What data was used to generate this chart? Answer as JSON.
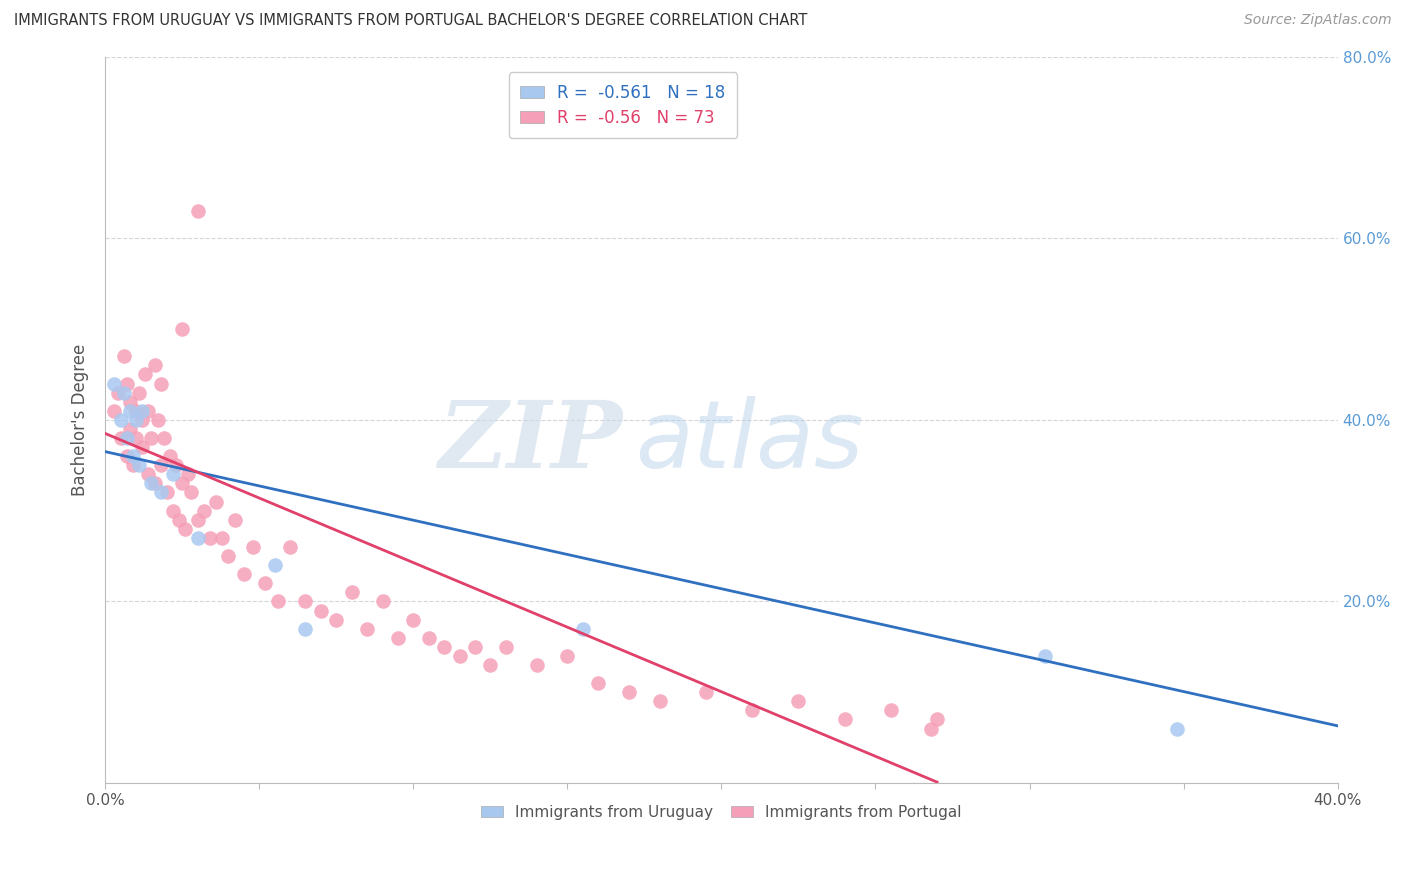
{
  "title": "IMMIGRANTS FROM URUGUAY VS IMMIGRANTS FROM PORTUGAL BACHELOR'S DEGREE CORRELATION CHART",
  "source": "Source: ZipAtlas.com",
  "ylabel": "Bachelor's Degree",
  "R1": -0.561,
  "N1": 18,
  "R2": -0.56,
  "N2": 73,
  "color_uruguay": "#A8C8F0",
  "color_portugal": "#F5A0B8",
  "line_color_uruguay": "#3070C0",
  "line_color_portugal": "#E0406A",
  "xlim": [
    0.0,
    0.4
  ],
  "ylim": [
    0.0,
    0.8
  ],
  "watermark_zip": "ZIP",
  "watermark_atlas": "atlas",
  "background_color": "#FFFFFF",
  "grid_color": "#CCCCCC",
  "title_color": "#333333",
  "right_axis_color": "#5B9BD5",
  "bottom_legend_label1": "Immigrants from Uruguay",
  "bottom_legend_label2": "Immigrants from Portugal",
  "uruguay_x": [
    0.003,
    0.005,
    0.006,
    0.007,
    0.008,
    0.009,
    0.01,
    0.011,
    0.012,
    0.015,
    0.018,
    0.022,
    0.03,
    0.055,
    0.065,
    0.155,
    0.305,
    0.348
  ],
  "uruguay_y": [
    0.44,
    0.4,
    0.43,
    0.38,
    0.41,
    0.36,
    0.4,
    0.35,
    0.41,
    0.33,
    0.32,
    0.34,
    0.27,
    0.24,
    0.17,
    0.17,
    0.14,
    0.06
  ],
  "portugal_x": [
    0.003,
    0.004,
    0.005,
    0.006,
    0.007,
    0.007,
    0.008,
    0.008,
    0.009,
    0.01,
    0.01,
    0.011,
    0.012,
    0.012,
    0.013,
    0.014,
    0.014,
    0.015,
    0.016,
    0.016,
    0.017,
    0.018,
    0.018,
    0.019,
    0.02,
    0.021,
    0.022,
    0.023,
    0.024,
    0.025,
    0.026,
    0.027,
    0.028,
    0.03,
    0.032,
    0.034,
    0.036,
    0.038,
    0.04,
    0.042,
    0.045,
    0.048,
    0.052,
    0.056,
    0.06,
    0.065,
    0.07,
    0.075,
    0.08,
    0.085,
    0.09,
    0.095,
    0.1,
    0.105,
    0.11,
    0.115,
    0.12,
    0.125,
    0.13,
    0.14,
    0.15,
    0.16,
    0.17,
    0.18,
    0.195,
    0.21,
    0.225,
    0.24,
    0.255,
    0.268,
    0.27,
    0.025,
    0.03
  ],
  "portugal_y": [
    0.41,
    0.43,
    0.38,
    0.47,
    0.36,
    0.44,
    0.39,
    0.42,
    0.35,
    0.41,
    0.38,
    0.43,
    0.4,
    0.37,
    0.45,
    0.34,
    0.41,
    0.38,
    0.33,
    0.46,
    0.4,
    0.35,
    0.44,
    0.38,
    0.32,
    0.36,
    0.3,
    0.35,
    0.29,
    0.33,
    0.28,
    0.34,
    0.32,
    0.29,
    0.3,
    0.27,
    0.31,
    0.27,
    0.25,
    0.29,
    0.23,
    0.26,
    0.22,
    0.2,
    0.26,
    0.2,
    0.19,
    0.18,
    0.21,
    0.17,
    0.2,
    0.16,
    0.18,
    0.16,
    0.15,
    0.14,
    0.15,
    0.13,
    0.15,
    0.13,
    0.14,
    0.11,
    0.1,
    0.09,
    0.1,
    0.08,
    0.09,
    0.07,
    0.08,
    0.06,
    0.07,
    0.5,
    0.63
  ],
  "ury_line_x0": 0.0,
  "ury_line_y0": 0.365,
  "ury_line_x1": 0.4,
  "ury_line_y1": 0.063,
  "por_line_x0": 0.0,
  "por_line_y0": 0.385,
  "por_line_x1": 0.27,
  "por_line_y1": 0.001
}
